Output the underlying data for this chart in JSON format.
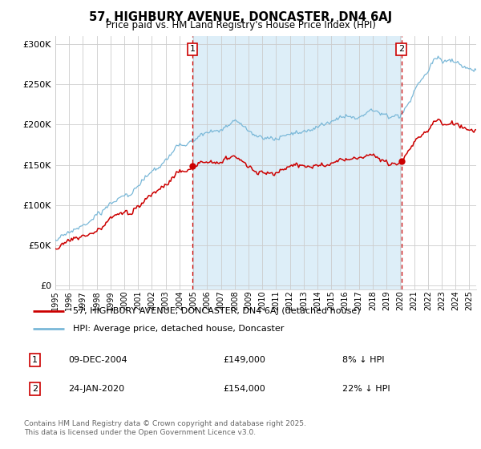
{
  "title": "57, HIGHBURY AVENUE, DONCASTER, DN4 6AJ",
  "subtitle": "Price paid vs. HM Land Registry's House Price Index (HPI)",
  "ylabel_ticks": [
    "£0",
    "£50K",
    "£100K",
    "£150K",
    "£200K",
    "£250K",
    "£300K"
  ],
  "ytick_values": [
    0,
    50000,
    100000,
    150000,
    200000,
    250000,
    300000
  ],
  "ylim": [
    -5000,
    310000
  ],
  "xlim_start": 1995,
  "xlim_end": 2025.5,
  "marker1_x": 2004.94,
  "marker1_y": 149000,
  "marker2_x": 2020.07,
  "marker2_y": 154000,
  "hpi_line_color": "#7ab8d8",
  "price_line_color": "#cc0000",
  "marker_line_color": "#cc0000",
  "shade_color": "#ddeef8",
  "grid_color": "#cccccc",
  "bg_color": "#ffffff",
  "legend_label1": "57, HIGHBURY AVENUE, DONCASTER, DN4 6AJ (detached house)",
  "legend_label2": "HPI: Average price, detached house, Doncaster",
  "note1_num": "1",
  "note1_date": "09-DEC-2004",
  "note1_price": "£149,000",
  "note1_hpi": "8% ↓ HPI",
  "note2_num": "2",
  "note2_date": "24-JAN-2020",
  "note2_price": "£154,000",
  "note2_hpi": "22% ↓ HPI",
  "footer": "Contains HM Land Registry data © Crown copyright and database right 2025.\nThis data is licensed under the Open Government Licence v3.0."
}
